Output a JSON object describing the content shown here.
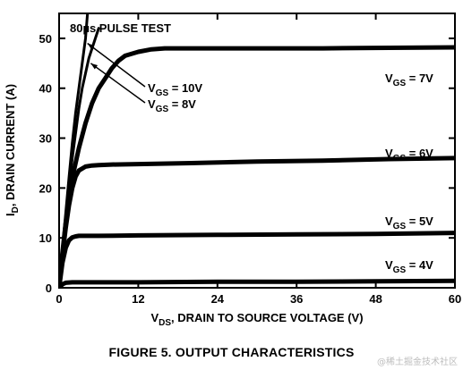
{
  "chart_data": {
    "type": "line",
    "caption": "FIGURE 5.  OUTPUT CHARACTERISTICS",
    "test_note": "80µs PULSE TEST",
    "xlabel": {
      "main": "V",
      "sub": "DS",
      "rest": ", DRAIN TO SOURCE VOLTAGE (V)"
    },
    "ylabel": {
      "main": "I",
      "sub": "D",
      "rest": ", DRAIN CURRENT (A)"
    },
    "xlim": [
      0,
      60
    ],
    "ylim": [
      0,
      55
    ],
    "xticks": [
      0,
      12,
      24,
      36,
      48,
      60
    ],
    "yticks": [
      0,
      10,
      20,
      30,
      40,
      50
    ],
    "series": [
      {
        "name": "VGS = 10V",
        "label_main": "V",
        "label_sub": "GS",
        "label_rest": " = 10V",
        "x": [
          0,
          0.5,
          1,
          1.5,
          2,
          2.5,
          3,
          3.5,
          4,
          4.3
        ],
        "y": [
          0,
          8,
          15,
          22,
          29,
          35,
          40,
          45,
          50,
          55
        ]
      },
      {
        "name": "VGS = 8V",
        "label_main": "V",
        "label_sub": "GS",
        "label_rest": " = 8V",
        "x": [
          0,
          0.5,
          1,
          1.5,
          2,
          2.5,
          3,
          3.5,
          4,
          4.5,
          5,
          5.5,
          6
        ],
        "y": [
          0,
          8,
          14,
          20,
          26,
          31,
          36,
          40,
          43,
          46,
          48,
          50,
          52
        ]
      },
      {
        "name": "VGS = 7V",
        "label_main": "V",
        "label_sub": "GS",
        "label_rest": " = 7V",
        "x": [
          0,
          0.5,
          1,
          2,
          3,
          4,
          5,
          6,
          7,
          8,
          9,
          10,
          12,
          14,
          16,
          20,
          30,
          40,
          50,
          60
        ],
        "y": [
          0,
          7,
          13,
          22,
          28,
          33,
          37,
          40,
          42,
          44,
          45.5,
          46.5,
          47.3,
          47.8,
          48,
          48,
          48,
          48,
          48.1,
          48.2
        ]
      },
      {
        "name": "VGS = 6V",
        "label_main": "V",
        "label_sub": "GS",
        "label_rest": " = 6V",
        "x": [
          0,
          0.5,
          1,
          1.5,
          2,
          2.5,
          3,
          4,
          5,
          6,
          8,
          12,
          20,
          30,
          40,
          50,
          60
        ],
        "y": [
          0,
          6.5,
          12,
          16.5,
          20,
          22.3,
          23.5,
          24.3,
          24.5,
          24.6,
          24.7,
          24.8,
          25,
          25.3,
          25.5,
          25.8,
          26
        ]
      },
      {
        "name": "VGS = 5V",
        "label_main": "V",
        "label_sub": "GS",
        "label_rest": " = 5V",
        "x": [
          0,
          0.5,
          1,
          1.5,
          2,
          2.5,
          3,
          4,
          6,
          12,
          24,
          36,
          48,
          60
        ],
        "y": [
          0,
          5,
          8,
          9.5,
          10.1,
          10.3,
          10.4,
          10.4,
          10.4,
          10.5,
          10.6,
          10.7,
          10.8,
          11
        ]
      },
      {
        "name": "VGS = 4V",
        "label_main": "V",
        "label_sub": "GS",
        "label_rest": " = 4V",
        "x": [
          0,
          0.5,
          1,
          2,
          3,
          6,
          12,
          24,
          36,
          48,
          60
        ],
        "y": [
          0,
          0.7,
          1,
          1.1,
          1.1,
          1.1,
          1.1,
          1.2,
          1.2,
          1.3,
          1.4
        ]
      }
    ],
    "grid": false
  }
}
